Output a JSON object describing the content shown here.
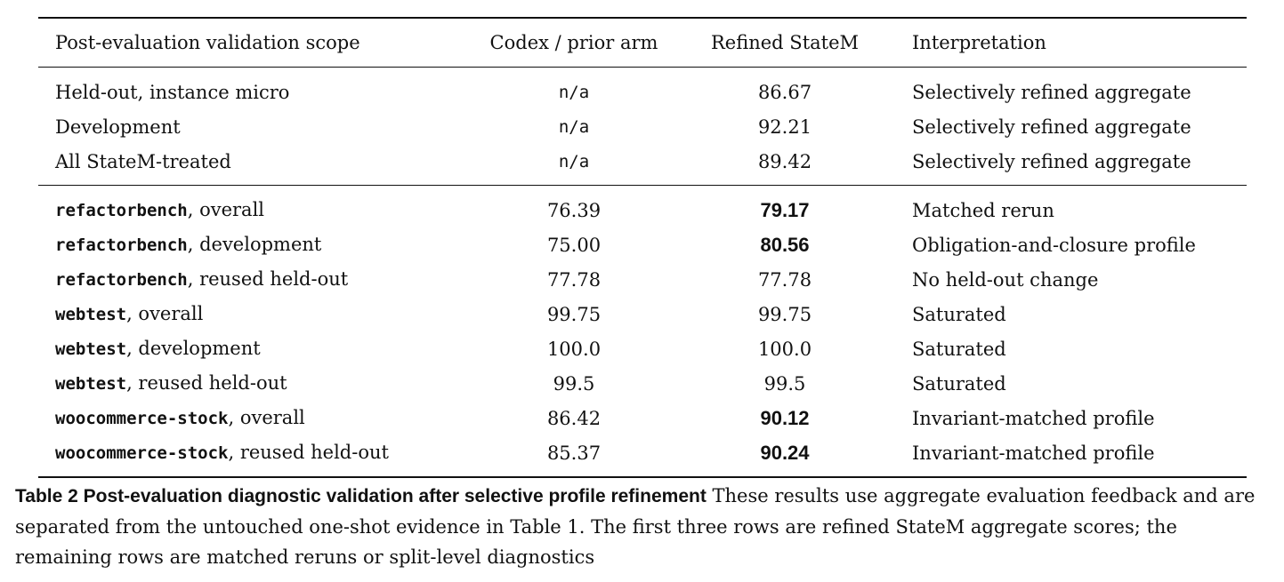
{
  "table": {
    "headers": {
      "scope": "Post-evaluation validation scope",
      "codex": "Codex / prior arm",
      "refined": "Refined StateM",
      "interpretation": "Interpretation"
    },
    "group1": [
      {
        "scope": "Held-out, instance micro",
        "codex": "n/a",
        "refined": "86.67",
        "interpretation": "Selectively refined aggregate"
      },
      {
        "scope": "Development",
        "codex": "n/a",
        "refined": "92.21",
        "interpretation": "Selectively refined aggregate"
      },
      {
        "scope": "All StateM-treated",
        "codex": "n/a",
        "refined": "89.42",
        "interpretation": "Selectively refined aggregate"
      }
    ],
    "group2": [
      {
        "scope_code": "refactorbench",
        "scope_rest": ", overall",
        "codex": "76.39",
        "refined": "79.17",
        "refined_bold": true,
        "interpretation": "Matched rerun"
      },
      {
        "scope_code": "refactorbench",
        "scope_rest": ", development",
        "codex": "75.00",
        "refined": "80.56",
        "refined_bold": true,
        "interpretation": "Obligation-and-closure profile"
      },
      {
        "scope_code": "refactorbench",
        "scope_rest": ", reused held-out",
        "codex": "77.78",
        "refined": "77.78",
        "refined_bold": false,
        "interpretation": "No held-out change"
      },
      {
        "scope_code": "webtest",
        "scope_rest": ", overall",
        "codex": "99.75",
        "refined": "99.75",
        "refined_bold": false,
        "interpretation": "Saturated"
      },
      {
        "scope_code": "webtest",
        "scope_rest": ", development",
        "codex": "100.0",
        "refined": "100.0",
        "refined_bold": false,
        "interpretation": "Saturated"
      },
      {
        "scope_code": "webtest",
        "scope_rest": ", reused held-out",
        "codex": "99.5",
        "refined": "99.5",
        "refined_bold": false,
        "interpretation": "Saturated"
      },
      {
        "scope_code": "woocommerce-stock",
        "scope_rest": ", overall",
        "codex": "86.42",
        "refined": "90.12",
        "refined_bold": true,
        "interpretation": "Invariant-matched profile"
      },
      {
        "scope_code": "woocommerce-stock",
        "scope_rest": ", reused held-out",
        "codex": "85.37",
        "refined": "90.24",
        "refined_bold": true,
        "interpretation": "Invariant-matched profile"
      }
    ]
  },
  "caption": {
    "label": "Table 2 Post-evaluation diagnostic validation after selective profile refinement",
    "text": " These results use aggregate evaluation feedback and are separated from the untouched one-shot evidence in Table 1. The first three rows are refined StateM aggregate scores; the remaining rows are matched reruns or split-level diagnostics"
  }
}
